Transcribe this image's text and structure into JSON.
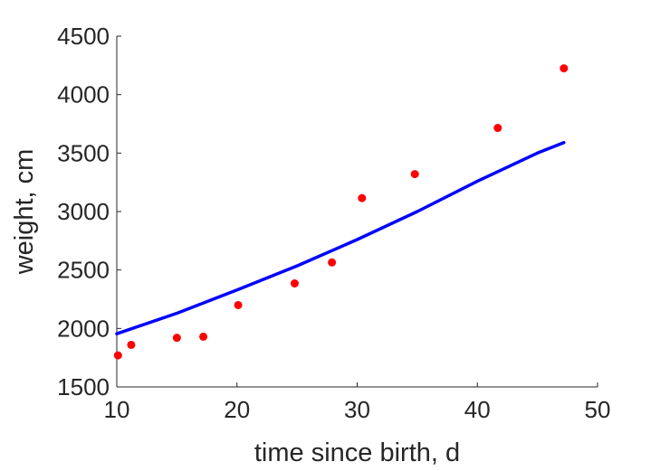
{
  "chart_data": {
    "type": "scatter",
    "title": "",
    "xlabel": "time since birth, d",
    "ylabel": "weight, cm",
    "xlim": [
      10,
      50
    ],
    "ylim": [
      1500,
      4500
    ],
    "xticks": [
      10,
      20,
      30,
      40,
      50
    ],
    "yticks": [
      1500,
      2000,
      2500,
      3000,
      3500,
      4000,
      4500
    ],
    "grid": false,
    "box": false,
    "series": [
      {
        "kind": "scatter",
        "color": "#ff0000",
        "x": [
          10.1,
          11.2,
          15.0,
          17.2,
          20.1,
          24.8,
          27.9,
          30.4,
          34.8,
          41.7,
          47.2
        ],
        "y": [
          1770,
          1860,
          1920,
          1930,
          2200,
          2385,
          2565,
          3115,
          3320,
          3715,
          4225
        ]
      },
      {
        "kind": "line",
        "color": "#0000ff",
        "x": [
          10,
          15,
          20,
          25,
          30,
          35,
          40,
          45,
          47.2
        ],
        "y": [
          1955,
          2130,
          2330,
          2535,
          2760,
          3000,
          3260,
          3500,
          3590
        ]
      }
    ]
  }
}
